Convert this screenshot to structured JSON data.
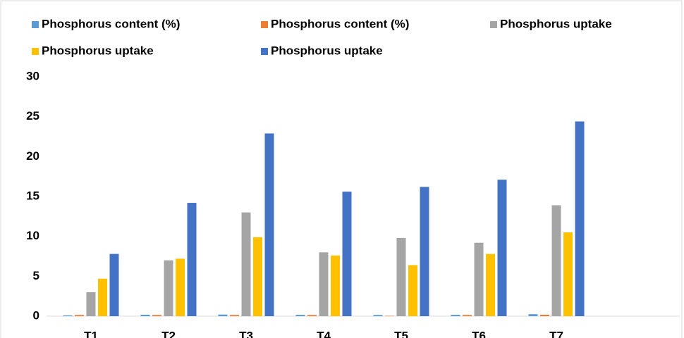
{
  "chart_data": {
    "type": "bar",
    "categories": [
      "T1",
      "T2",
      "T3",
      "T4",
      "T5",
      "T6",
      "T7",
      null
    ],
    "series": [
      {
        "name": "Phosphorus content (%)",
        "color": "#5b9bd5",
        "values": [
          0.1,
          0.18,
          0.2,
          0.17,
          0.15,
          0.17,
          0.25,
          null
        ]
      },
      {
        "name": "Phosphorus content (%)",
        "color": "#ed7d31",
        "values": [
          0.15,
          0.15,
          0.15,
          0.15,
          0.05,
          0.15,
          0.18,
          null
        ]
      },
      {
        "name": "Phosphorus uptake",
        "color": "#a5a5a5",
        "values": [
          3.0,
          7.0,
          13.0,
          8.0,
          9.8,
          9.2,
          13.9,
          null
        ]
      },
      {
        "name": "Phosphorus uptake",
        "color": "#ffc000",
        "values": [
          4.7,
          7.2,
          9.9,
          7.6,
          6.4,
          7.8,
          10.5,
          null
        ]
      },
      {
        "name": "Phosphorus uptake",
        "color": "#4472c4",
        "values": [
          7.8,
          14.2,
          22.9,
          15.6,
          16.2,
          17.1,
          24.4,
          null
        ]
      }
    ],
    "ylim": [
      0,
      30
    ],
    "yticks": [
      0,
      5,
      10,
      15,
      20,
      25,
      30
    ],
    "grid": false,
    "legend": "top"
  }
}
